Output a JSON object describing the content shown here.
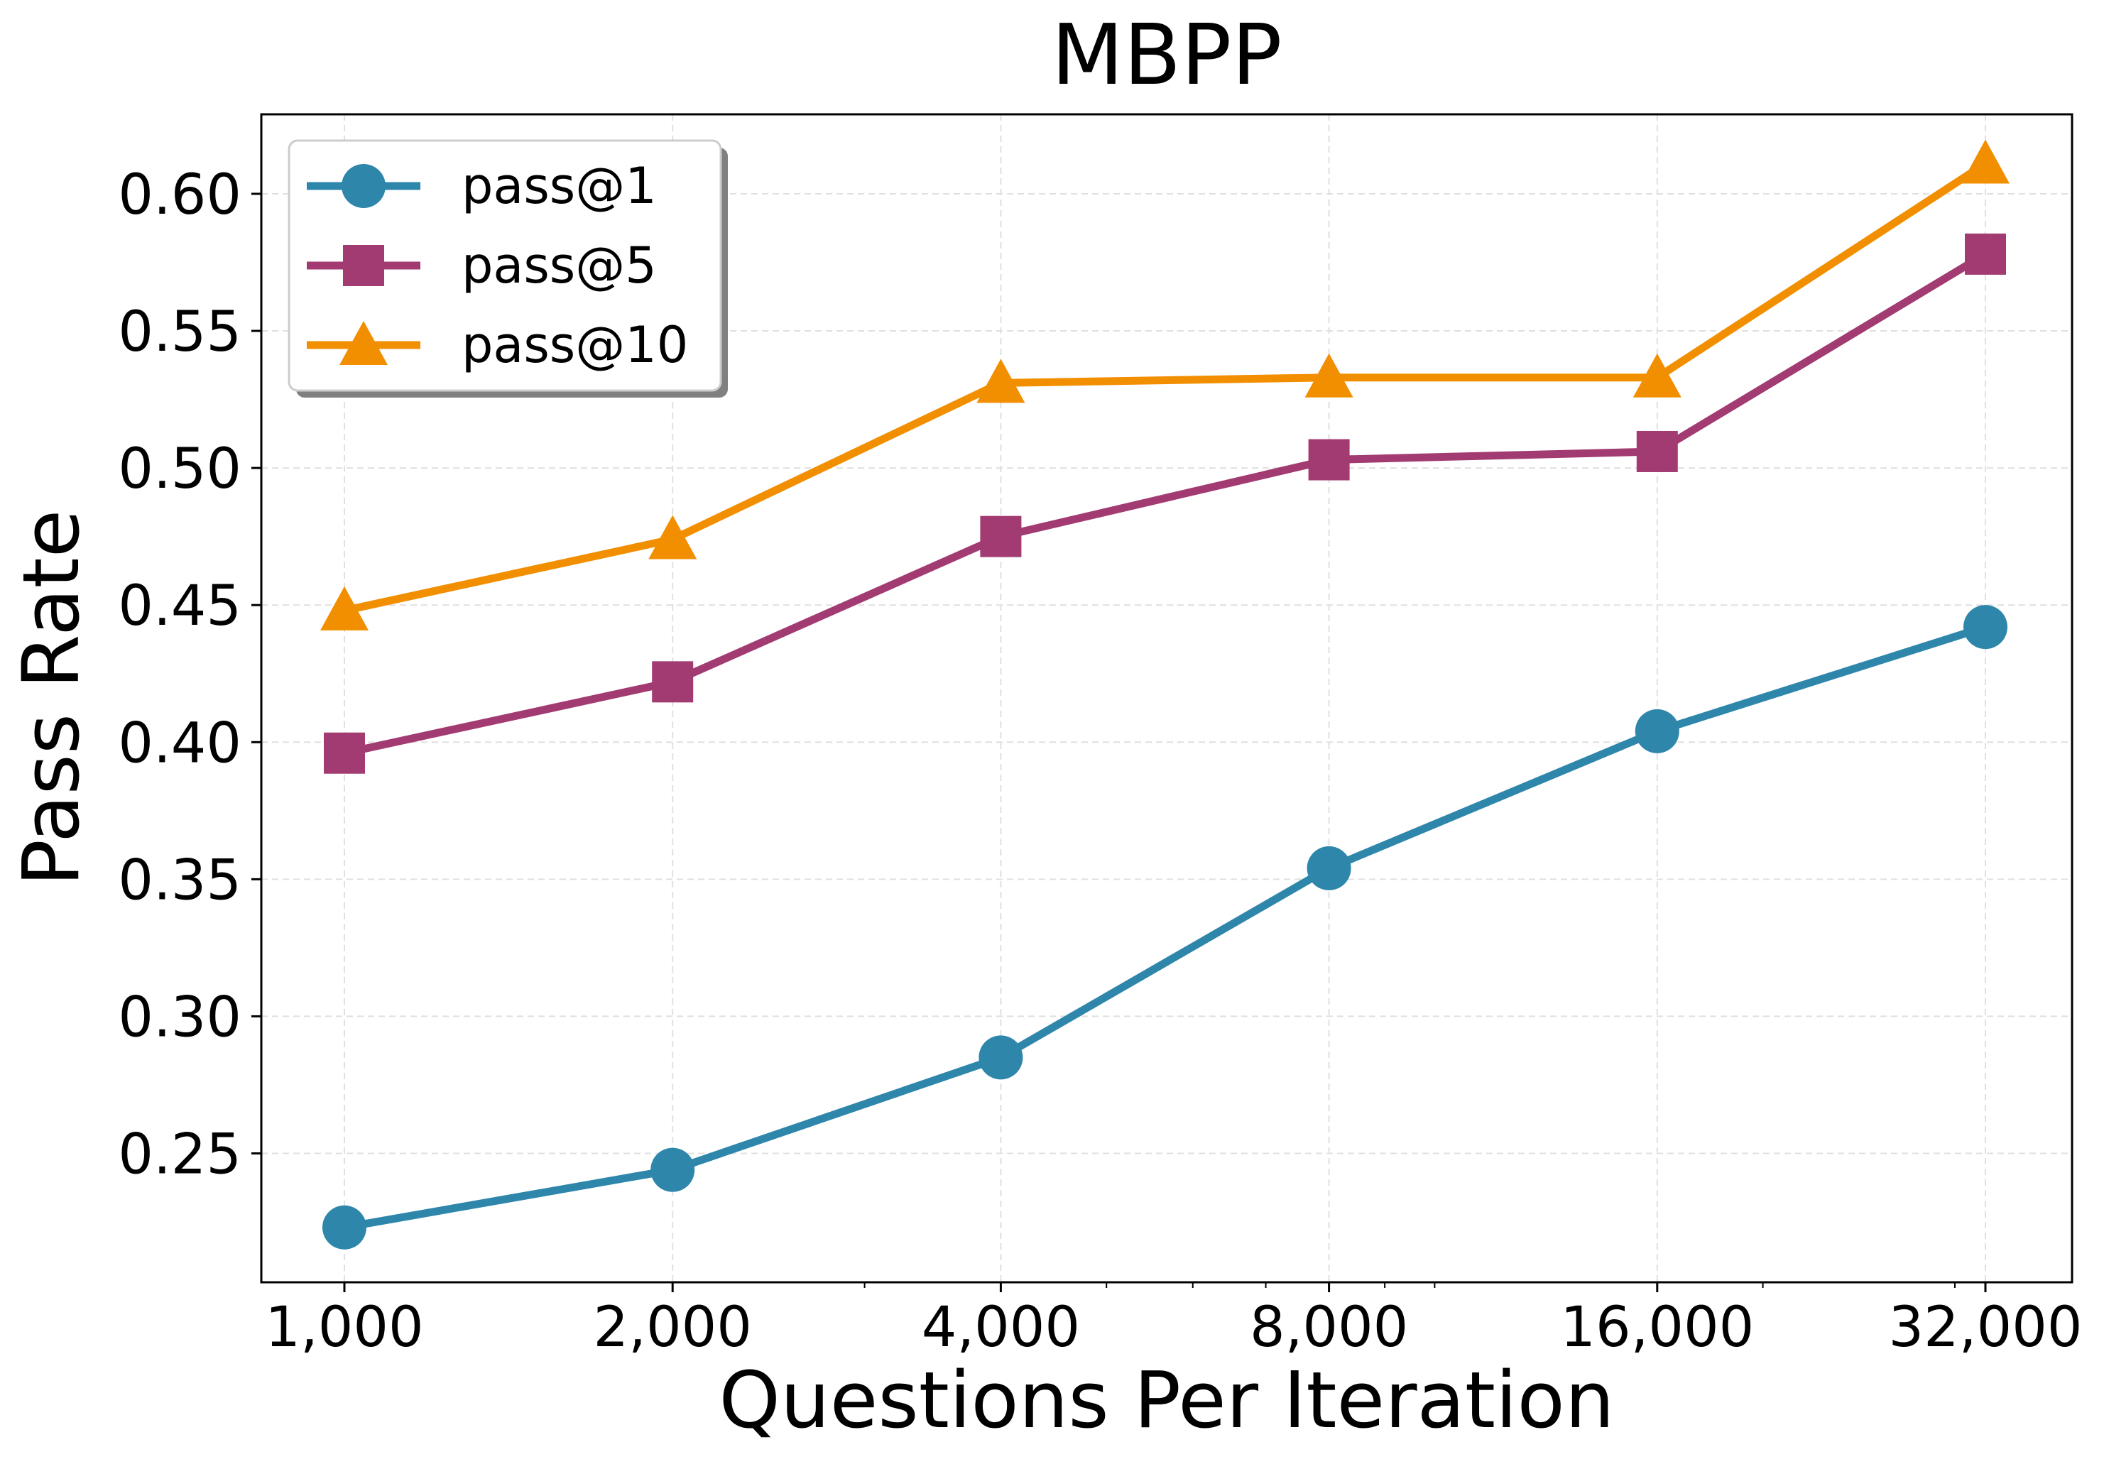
{
  "chart_data": {
    "type": "line",
    "title": "MBPP",
    "xlabel": "Questions Per Iteration",
    "ylabel": "Pass Rate",
    "x_scale": "log2",
    "x": [
      1000,
      2000,
      4000,
      8000,
      16000,
      32000
    ],
    "x_tick_labels": [
      "1,000",
      "2,000",
      "4,000",
      "8,000",
      "16,000",
      "32,000"
    ],
    "y_ticks": [
      0.25,
      0.3,
      0.35,
      0.4,
      0.45,
      0.5,
      0.55,
      0.6
    ],
    "y_tick_labels": [
      "0.25",
      "0.30",
      "0.35",
      "0.40",
      "0.45",
      "0.50",
      "0.55",
      "0.60"
    ],
    "ylim": [
      0.203,
      0.629
    ],
    "grid": true,
    "legend_position": "top-left",
    "series": [
      {
        "name": "pass@1",
        "marker": "circle",
        "color": "#2e86ab",
        "values": [
          0.223,
          0.244,
          0.285,
          0.354,
          0.404,
          0.442
        ]
      },
      {
        "name": "pass@5",
        "marker": "square",
        "color": "#a23b72",
        "values": [
          0.396,
          0.422,
          0.475,
          0.503,
          0.506,
          0.578
        ]
      },
      {
        "name": "pass@10",
        "marker": "triangle",
        "color": "#f18f01",
        "values": [
          0.448,
          0.474,
          0.531,
          0.533,
          0.533,
          0.611
        ]
      }
    ]
  }
}
